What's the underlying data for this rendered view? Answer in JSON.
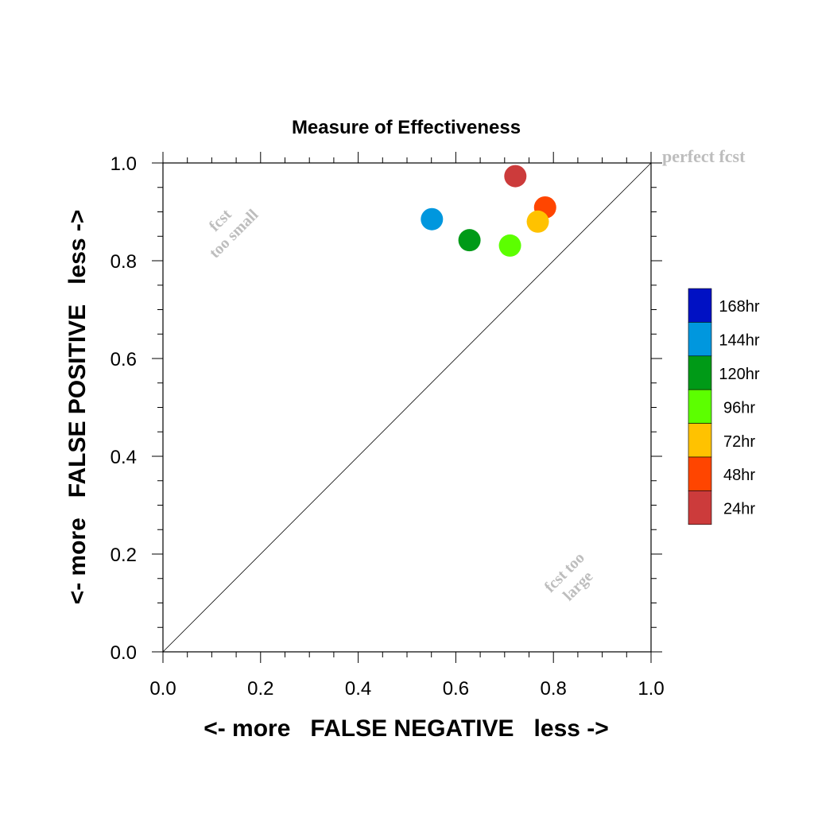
{
  "chart_data": {
    "type": "scatter",
    "title": "Measure of Effectiveness",
    "xlabel": "<- more   FALSE NEGATIVE   less ->",
    "ylabel": "<- more   FALSE POSITIVE   less ->",
    "xlim": [
      0.0,
      1.0
    ],
    "ylim": [
      0.0,
      1.0
    ],
    "x_ticks": [
      "0.0",
      "0.2",
      "0.4",
      "0.6",
      "0.8",
      "1.0"
    ],
    "y_ticks": [
      "0.0",
      "0.2",
      "0.4",
      "0.6",
      "0.8",
      "1.0"
    ],
    "grid": false,
    "diagonal_line": true,
    "annotations": {
      "perfect": "perfect fcst",
      "small_line1": "fcst",
      "small_line2": "too small",
      "large_line1": "fcst too",
      "large_line2": "large"
    },
    "legend_position": "right",
    "series": [
      {
        "name": "24hr",
        "color": "#cc3b3b",
        "x": 0.722,
        "y": 0.973
      },
      {
        "name": "48hr",
        "color": "#ff4500",
        "x": 0.783,
        "y": 0.909
      },
      {
        "name": "72hr",
        "color": "#ffc200",
        "x": 0.768,
        "y": 0.88
      },
      {
        "name": "96hr",
        "color": "#5cff00",
        "x": 0.711,
        "y": 0.831
      },
      {
        "name": "120hr",
        "color": "#009a17",
        "x": 0.628,
        "y": 0.842
      },
      {
        "name": "144hr",
        "color": "#0097de",
        "x": 0.551,
        "y": 0.885
      },
      {
        "name": "168hr",
        "color": "#0011c4",
        "x": null,
        "y": null
      }
    ]
  }
}
